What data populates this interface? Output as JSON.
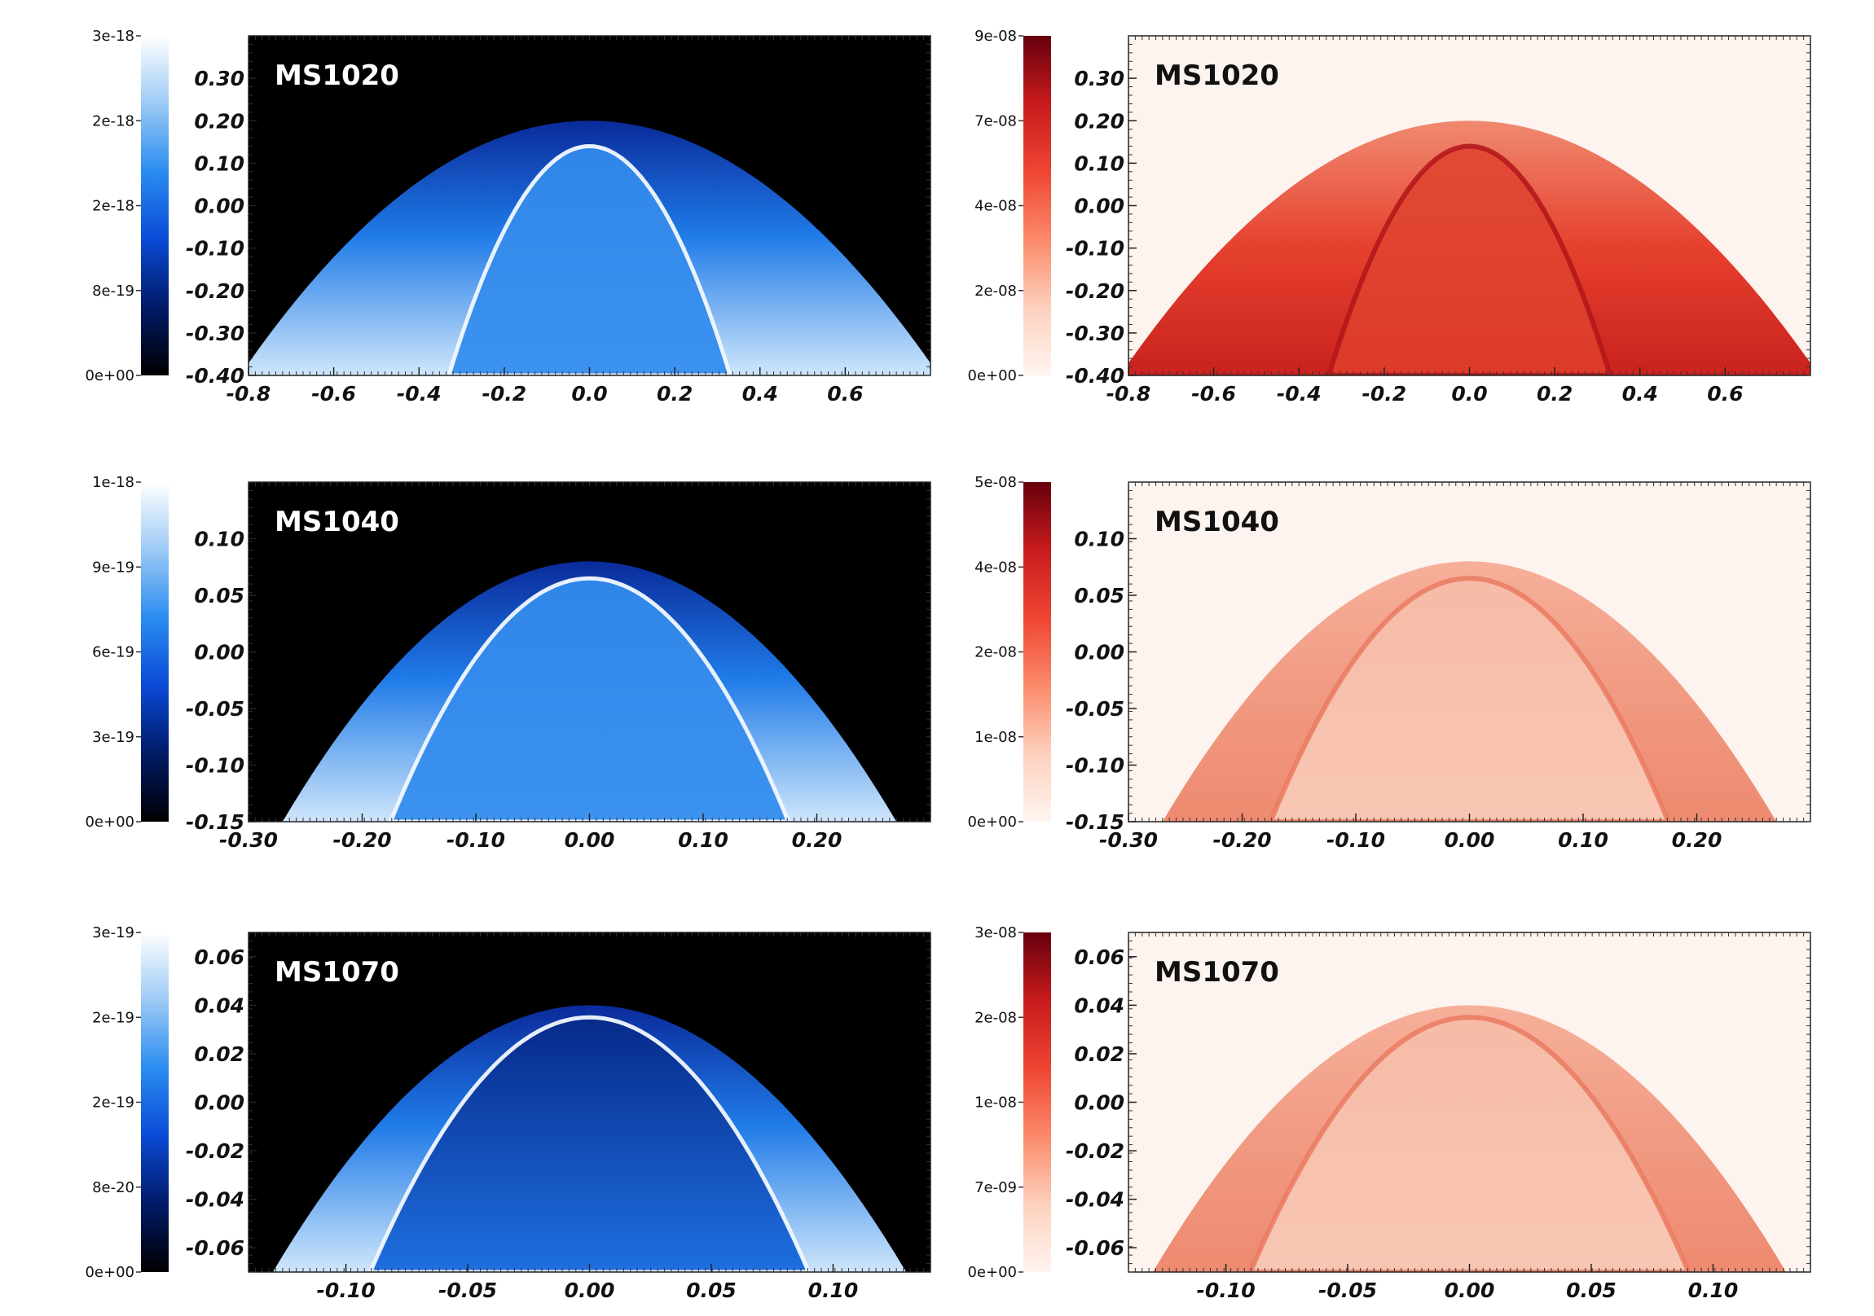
{
  "colors": {
    "blue_map": [
      "#000000",
      "#001a66",
      "#0a4ad6",
      "#2a8cf0",
      "#9ccaf5",
      "#ffffff"
    ],
    "red_map": [
      "#fff5f0",
      "#fdd0bd",
      "#fb8a6a",
      "#ef4533",
      "#c81b1d",
      "#67000d"
    ],
    "blue_background": "#000000",
    "red_background": "#fdf3ef",
    "title_on_blue": "#ffffff",
    "title_on_red": "#111111"
  },
  "chart_data": [
    {
      "type": "heatmap",
      "panel": "row1-left",
      "title": "MS1020",
      "colormap": "blue",
      "colorbar_ticks": [
        "0e+00",
        "8e-19",
        "2e-18",
        "2e-18",
        "3e-18"
      ],
      "xlim": [
        -0.8,
        0.8
      ],
      "ylim": [
        -0.4,
        0.4
      ],
      "xticks": [
        -0.8,
        -0.6,
        -0.4,
        -0.2,
        0.0,
        0.2,
        0.4,
        0.6
      ],
      "xtick_labels": [
        "-0.8",
        "-0.6",
        "-0.4",
        "-0.2",
        "0.0",
        "0.2",
        "0.4",
        "0.6"
      ],
      "yticks": [
        -0.4,
        -0.3,
        -0.2,
        -0.1,
        0.0,
        0.1,
        0.2,
        0.3
      ],
      "ytick_labels": [
        "-0.40",
        "-0.30",
        "-0.20",
        "-0.10",
        "0.00",
        "0.10",
        "0.20",
        "0.30"
      ],
      "outer_shock": {
        "apex_y": 0.2,
        "base_half_width": 0.82
      },
      "inner_front": {
        "apex_y": 0.14,
        "base_half_width": 0.33
      }
    },
    {
      "type": "heatmap",
      "panel": "row1-right",
      "title": "MS1020",
      "colormap": "red",
      "colorbar_ticks": [
        "0e+00",
        "2e-08",
        "4e-08",
        "7e-08",
        "9e-08"
      ],
      "xlim": [
        -0.8,
        0.8
      ],
      "ylim": [
        -0.4,
        0.4
      ],
      "xticks": [
        -0.8,
        -0.6,
        -0.4,
        -0.2,
        0.0,
        0.2,
        0.4,
        0.6
      ],
      "xtick_labels": [
        "-0.8",
        "-0.6",
        "-0.4",
        "-0.2",
        "0.0",
        "0.2",
        "0.4",
        "0.6"
      ],
      "yticks": [
        -0.4,
        -0.3,
        -0.2,
        -0.1,
        0.0,
        0.1,
        0.2,
        0.3
      ],
      "ytick_labels": [
        "-0.40",
        "-0.30",
        "-0.20",
        "-0.10",
        "0.00",
        "0.10",
        "0.20",
        "0.30"
      ],
      "outer_shock": {
        "apex_y": 0.2,
        "base_half_width": 0.82
      },
      "inner_front": {
        "apex_y": 0.14,
        "base_half_width": 0.33
      }
    },
    {
      "type": "heatmap",
      "panel": "row2-left",
      "title": "MS1040",
      "colormap": "blue",
      "colorbar_ticks": [
        "0e+00",
        "3e-19",
        "6e-19",
        "9e-19",
        "1e-18"
      ],
      "xlim": [
        -0.3,
        0.3
      ],
      "ylim": [
        -0.15,
        0.15
      ],
      "xticks": [
        -0.3,
        -0.2,
        -0.1,
        0.0,
        0.1,
        0.2
      ],
      "xtick_labels": [
        "-0.30",
        "-0.20",
        "-0.10",
        "0.00",
        "0.10",
        "0.20"
      ],
      "yticks": [
        -0.15,
        -0.1,
        -0.05,
        0.0,
        0.05,
        0.1
      ],
      "ytick_labels": [
        "-0.15",
        "-0.10",
        "-0.05",
        "0.00",
        "0.05",
        "0.10"
      ],
      "outer_shock": {
        "apex_y": 0.08,
        "base_half_width": 0.27
      },
      "inner_front": {
        "apex_y": 0.065,
        "base_half_width": 0.175
      }
    },
    {
      "type": "heatmap",
      "panel": "row2-right",
      "title": "MS1040",
      "colormap": "red",
      "colorbar_ticks": [
        "0e+00",
        "1e-08",
        "2e-08",
        "4e-08",
        "5e-08"
      ],
      "xlim": [
        -0.3,
        0.3
      ],
      "ylim": [
        -0.15,
        0.15
      ],
      "xticks": [
        -0.3,
        -0.2,
        -0.1,
        0.0,
        0.1,
        0.2
      ],
      "xtick_labels": [
        "-0.30",
        "-0.20",
        "-0.10",
        "0.00",
        "0.10",
        "0.20"
      ],
      "yticks": [
        -0.15,
        -0.1,
        -0.05,
        0.0,
        0.05,
        0.1
      ],
      "ytick_labels": [
        "-0.15",
        "-0.10",
        "-0.05",
        "0.00",
        "0.05",
        "0.10"
      ],
      "outer_shock": {
        "apex_y": 0.08,
        "base_half_width": 0.27
      },
      "inner_front": {
        "apex_y": 0.065,
        "base_half_width": 0.175
      }
    },
    {
      "type": "heatmap",
      "panel": "row3-left",
      "title": "MS1070",
      "colormap": "blue",
      "colorbar_ticks": [
        "0e+00",
        "8e-20",
        "2e-19",
        "2e-19",
        "3e-19"
      ],
      "xlim": [
        -0.14,
        0.14
      ],
      "ylim": [
        -0.07,
        0.07
      ],
      "xticks": [
        -0.1,
        -0.05,
        0.0,
        0.05,
        0.1
      ],
      "xtick_labels": [
        "-0.10",
        "-0.05",
        "0.00",
        "0.05",
        "0.10"
      ],
      "yticks": [
        -0.06,
        -0.04,
        -0.02,
        0.0,
        0.02,
        0.04,
        0.06
      ],
      "ytick_labels": [
        "-0.06",
        "-0.04",
        "-0.02",
        "0.00",
        "0.02",
        "0.04",
        "0.06"
      ],
      "outer_shock": {
        "apex_y": 0.04,
        "base_half_width": 0.13
      },
      "inner_front": {
        "apex_y": 0.035,
        "base_half_width": 0.09
      }
    },
    {
      "type": "heatmap",
      "panel": "row3-right",
      "title": "MS1070",
      "colormap": "red",
      "colorbar_ticks": [
        "0e+00",
        "7e-09",
        "1e-08",
        "2e-08",
        "3e-08"
      ],
      "xlim": [
        -0.14,
        0.14
      ],
      "ylim": [
        -0.07,
        0.07
      ],
      "xticks": [
        -0.1,
        -0.05,
        0.0,
        0.05,
        0.1
      ],
      "xtick_labels": [
        "-0.10",
        "-0.05",
        "0.00",
        "0.05",
        "0.10"
      ],
      "yticks": [
        -0.06,
        -0.04,
        -0.02,
        0.0,
        0.02,
        0.04,
        0.06
      ],
      "ytick_labels": [
        "-0.06",
        "-0.04",
        "-0.02",
        "0.00",
        "0.02",
        "0.04",
        "0.06"
      ],
      "outer_shock": {
        "apex_y": 0.04,
        "base_half_width": 0.13
      },
      "inner_front": {
        "apex_y": 0.035,
        "base_half_width": 0.09
      }
    }
  ]
}
